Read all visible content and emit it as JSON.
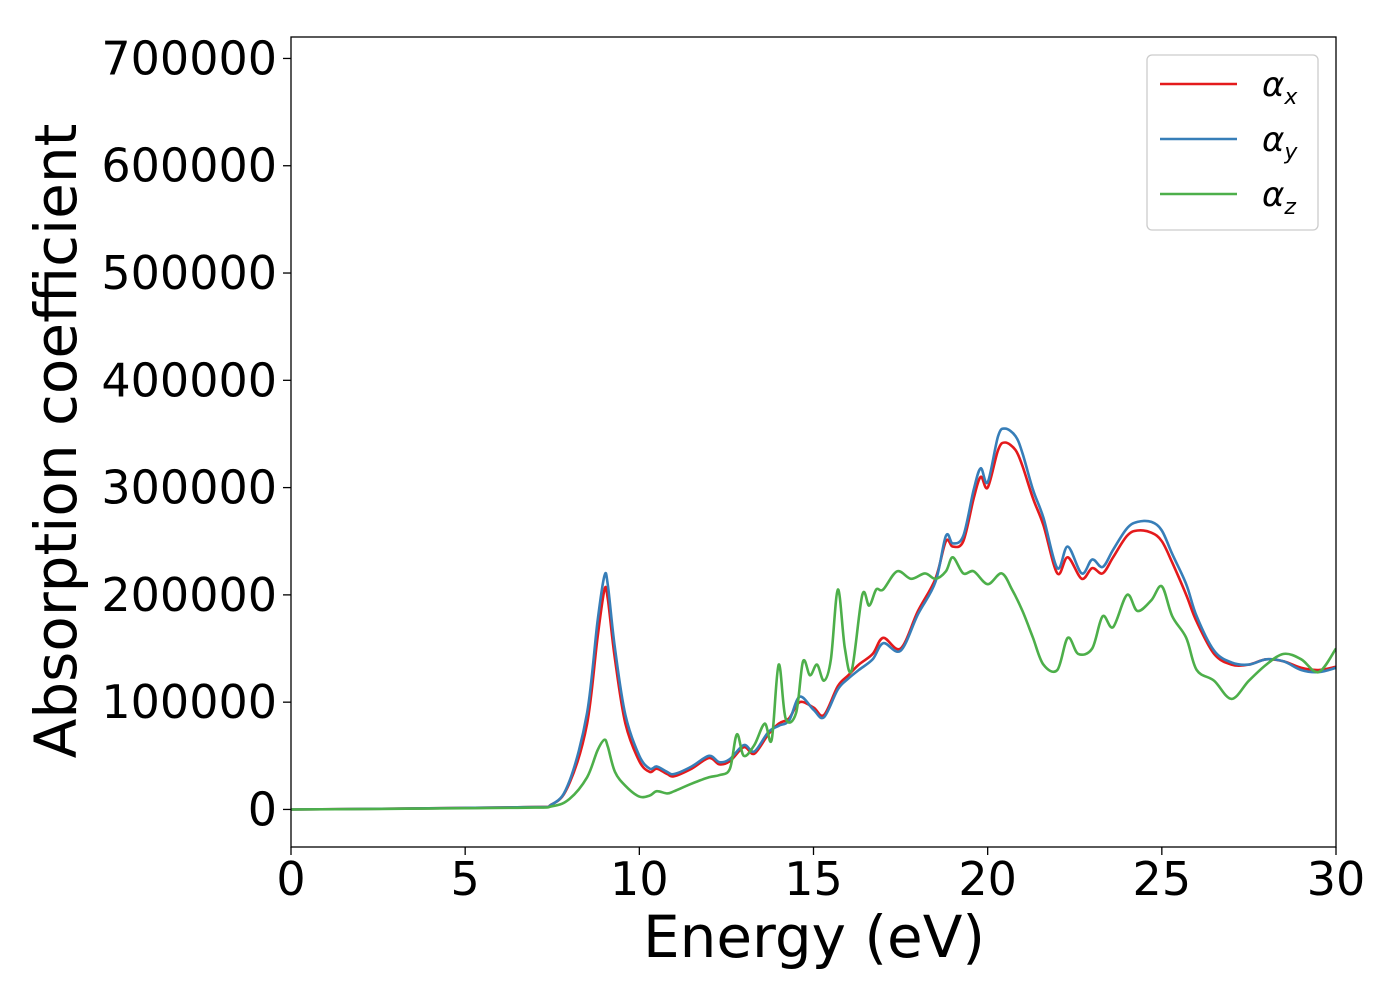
{
  "chart_data": {
    "type": "line",
    "title": "",
    "xlabel": "Energy (eV)",
    "ylabel": "Absorption coefficient",
    "xlim": [
      0,
      30
    ],
    "ylim": [
      -35000,
      720000
    ],
    "xticks": [
      0,
      5,
      10,
      15,
      20,
      25,
      30
    ],
    "xtick_labels": [
      "0",
      "5",
      "10",
      "15",
      "20",
      "25",
      "30"
    ],
    "yticks": [
      0,
      100000,
      200000,
      300000,
      400000,
      500000,
      600000,
      700000
    ],
    "ytick_labels": [
      "0",
      "100000",
      "200000",
      "300000",
      "400000",
      "500000",
      "600000",
      "700000"
    ],
    "grid": false,
    "legend_position": "top-right",
    "series": [
      {
        "name": "α",
        "name_sub": "x",
        "color": "#e41a1c",
        "x": [
          0,
          6.5,
          7.5,
          8.0,
          8.5,
          8.8,
          9.0,
          9.1,
          9.3,
          9.6,
          10.0,
          10.3,
          10.5,
          10.8,
          11.0,
          11.5,
          12.0,
          12.3,
          12.6,
          13.0,
          13.3,
          13.7,
          14.0,
          14.3,
          14.6,
          15.0,
          15.3,
          15.7,
          16.0,
          16.3,
          16.7,
          17.0,
          17.5,
          18.0,
          18.5,
          18.8,
          19.0,
          19.3,
          19.6,
          19.8,
          20.0,
          20.3,
          20.5,
          20.8,
          21.0,
          21.3,
          21.6,
          22.0,
          22.3,
          22.7,
          23.0,
          23.3,
          23.6,
          24.0,
          24.3,
          24.7,
          25.0,
          25.3,
          25.7,
          26.0,
          26.5,
          27.0,
          27.5,
          28.0,
          28.5,
          29.0,
          29.5,
          30.0
        ],
        "values": [
          0,
          2000,
          5000,
          25000,
          80000,
          160000,
          205000,
          195000,
          140000,
          80000,
          45000,
          35000,
          38000,
          33000,
          31000,
          38000,
          48000,
          42000,
          45000,
          58000,
          52000,
          70000,
          80000,
          85000,
          100000,
          95000,
          88000,
          115000,
          125000,
          135000,
          145000,
          160000,
          150000,
          185000,
          215000,
          250000,
          245000,
          250000,
          290000,
          310000,
          300000,
          335000,
          342000,
          335000,
          320000,
          290000,
          265000,
          220000,
          235000,
          215000,
          225000,
          220000,
          235000,
          255000,
          260000,
          258000,
          250000,
          230000,
          200000,
          175000,
          145000,
          135000,
          135000,
          140000,
          138000,
          132000,
          130000,
          133000
        ]
      },
      {
        "name": "α",
        "name_sub": "y",
        "color": "#377eb8",
        "x": [
          0,
          6.5,
          7.5,
          8.0,
          8.5,
          8.8,
          9.0,
          9.1,
          9.3,
          9.6,
          10.0,
          10.3,
          10.5,
          10.8,
          11.0,
          11.5,
          12.0,
          12.3,
          12.6,
          13.0,
          13.3,
          13.7,
          14.0,
          14.3,
          14.6,
          15.0,
          15.3,
          15.7,
          16.0,
          16.3,
          16.7,
          17.0,
          17.5,
          18.0,
          18.5,
          18.8,
          19.0,
          19.3,
          19.6,
          19.8,
          20.0,
          20.3,
          20.5,
          20.8,
          21.0,
          21.3,
          21.6,
          22.0,
          22.3,
          22.7,
          23.0,
          23.3,
          23.6,
          24.0,
          24.3,
          24.7,
          25.0,
          25.3,
          25.7,
          26.0,
          26.5,
          27.0,
          27.5,
          28.0,
          28.5,
          29.0,
          29.5,
          30.0
        ],
        "values": [
          0,
          2000,
          5000,
          27000,
          90000,
          175000,
          218000,
          208000,
          150000,
          88000,
          50000,
          38000,
          40000,
          35000,
          33000,
          40000,
          50000,
          44000,
          47000,
          60000,
          54000,
          72000,
          78000,
          83000,
          105000,
          93000,
          86000,
          112000,
          122000,
          130000,
          140000,
          155000,
          148000,
          182000,
          212000,
          255000,
          248000,
          255000,
          298000,
          318000,
          305000,
          348000,
          355000,
          348000,
          332000,
          298000,
          272000,
          225000,
          245000,
          220000,
          233000,
          226000,
          242000,
          262000,
          268000,
          268000,
          260000,
          238000,
          210000,
          180000,
          148000,
          137000,
          135000,
          140000,
          138000,
          130000,
          128000,
          132000
        ]
      },
      {
        "name": "α",
        "name_sub": "z",
        "color": "#4daf4a",
        "x": [
          0,
          6.5,
          7.5,
          8.0,
          8.5,
          8.8,
          9.0,
          9.1,
          9.3,
          9.6,
          10.0,
          10.3,
          10.5,
          10.8,
          11.0,
          11.5,
          12.0,
          12.3,
          12.6,
          12.8,
          13.0,
          13.3,
          13.6,
          13.8,
          14.0,
          14.2,
          14.5,
          14.7,
          14.9,
          15.1,
          15.3,
          15.5,
          15.7,
          15.9,
          16.1,
          16.4,
          16.6,
          16.8,
          17.0,
          17.4,
          17.8,
          18.2,
          18.5,
          18.8,
          19.0,
          19.3,
          19.6,
          20.0,
          20.4,
          20.7,
          21.0,
          21.3,
          21.6,
          22.0,
          22.3,
          22.6,
          23.0,
          23.3,
          23.6,
          24.0,
          24.3,
          24.7,
          25.0,
          25.3,
          25.7,
          26.0,
          26.5,
          27.0,
          27.5,
          28.0,
          28.5,
          29.0,
          29.5,
          30.0
        ],
        "values": [
          0,
          1500,
          3000,
          10000,
          30000,
          55000,
          65000,
          58000,
          35000,
          22000,
          12000,
          13000,
          17000,
          15000,
          17000,
          24000,
          30000,
          32000,
          38000,
          70000,
          50000,
          60000,
          80000,
          65000,
          135000,
          85000,
          90000,
          138000,
          125000,
          135000,
          120000,
          140000,
          205000,
          150000,
          130000,
          200000,
          190000,
          205000,
          205000,
          222000,
          215000,
          220000,
          215000,
          222000,
          235000,
          220000,
          222000,
          210000,
          220000,
          205000,
          185000,
          160000,
          135000,
          130000,
          160000,
          145000,
          150000,
          180000,
          170000,
          200000,
          185000,
          195000,
          208000,
          180000,
          160000,
          130000,
          120000,
          103000,
          120000,
          135000,
          145000,
          140000,
          128000,
          150000
        ]
      }
    ]
  }
}
